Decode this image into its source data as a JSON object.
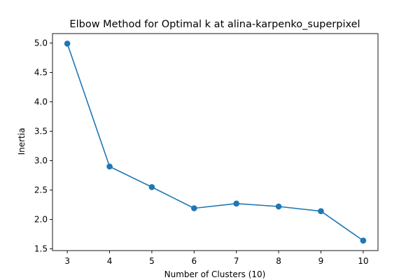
{
  "chart_data": {
    "type": "line",
    "title": "Elbow Method for Optimal k at alina-karpenko_superpixel",
    "xlabel": "Number of Clusters (10)",
    "ylabel": "Inertia",
    "x": [
      3,
      4,
      5,
      6,
      7,
      8,
      9,
      10
    ],
    "series": [
      {
        "values": [
          4.99,
          2.9,
          2.55,
          2.19,
          2.27,
          2.22,
          2.14,
          1.64
        ],
        "color": "#1f77b4",
        "marker": "circle"
      }
    ],
    "xlim": [
      2.65,
      10.35
    ],
    "ylim": [
      1.47,
      5.16
    ],
    "xticks": [
      3,
      4,
      5,
      6,
      7,
      8,
      9,
      10
    ],
    "yticks": [
      1.5,
      2.0,
      2.5,
      3.0,
      3.5,
      4.0,
      4.5,
      5.0
    ],
    "ytick_labels": [
      "1.5",
      "2.0",
      "2.5",
      "3.0",
      "3.5",
      "4.0",
      "4.5",
      "5.0"
    ],
    "grid": false,
    "legend": "none"
  }
}
